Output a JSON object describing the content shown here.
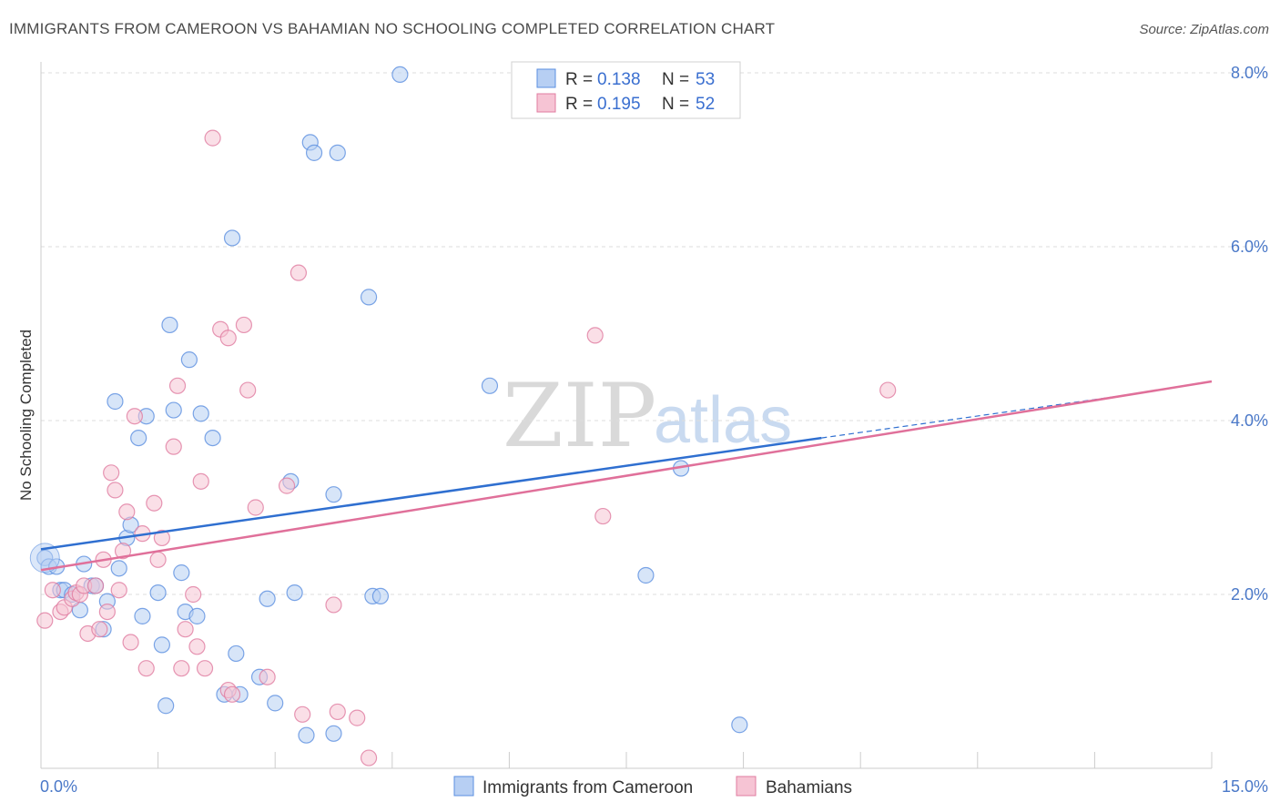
{
  "title": "IMMIGRANTS FROM CAMEROON VS BAHAMIAN NO SCHOOLING COMPLETED CORRELATION CHART",
  "source": "Source: ZipAtlas.com",
  "watermark": {
    "zip": "ZIP",
    "atlas": "atlas"
  },
  "colors": {
    "blue": "#5b8fe0",
    "blue_fill": "#b7cff3",
    "pink": "#e07ca0",
    "pink_fill": "#f6c4d4",
    "blue_line": "#2f6fd0",
    "pink_line": "#e0709a"
  },
  "legend": {
    "rows": [
      {
        "r_label": "R = ",
        "r_value": "0.138",
        "n_label": "N = ",
        "n_value": "53"
      },
      {
        "r_label": "R = ",
        "r_value": "0.195",
        "n_label": "N = ",
        "n_value": "52"
      }
    ]
  },
  "chart_data": {
    "type": "scatter",
    "ylabel": "No Schooling Completed",
    "xlim": [
      0,
      15
    ],
    "ylim": [
      0,
      8
    ],
    "x_tick_labels": [
      "0.0%",
      "15.0%"
    ],
    "y_ticks": [
      2,
      4,
      6,
      8
    ],
    "y_tick_labels": [
      "2.0%",
      "4.0%",
      "6.0%",
      "8.0%"
    ],
    "series": [
      {
        "name": "Immigrants from Cameroon",
        "r": 0.138,
        "n": 53,
        "trend": {
          "x0": 0.0,
          "y0": 2.52,
          "x1": 10.0,
          "y1": 3.8,
          "dash_to_x": 13.8,
          "dash_to_y": 4.28
        },
        "points": [
          [
            0.05,
            2.42
          ],
          [
            0.1,
            2.32
          ],
          [
            0.2,
            2.32
          ],
          [
            0.25,
            2.05
          ],
          [
            0.3,
            2.05
          ],
          [
            0.4,
            2.0
          ],
          [
            0.5,
            1.82
          ],
          [
            0.55,
            2.35
          ],
          [
            0.65,
            2.1
          ],
          [
            0.7,
            2.1
          ],
          [
            0.8,
            1.6
          ],
          [
            0.85,
            1.92
          ],
          [
            0.95,
            4.22
          ],
          [
            1.0,
            2.3
          ],
          [
            1.1,
            2.65
          ],
          [
            1.15,
            2.8
          ],
          [
            1.25,
            3.8
          ],
          [
            1.3,
            1.75
          ],
          [
            1.35,
            4.05
          ],
          [
            1.5,
            2.02
          ],
          [
            1.55,
            1.42
          ],
          [
            1.6,
            0.72
          ],
          [
            1.65,
            5.1
          ],
          [
            1.7,
            4.12
          ],
          [
            1.8,
            2.25
          ],
          [
            1.85,
            1.8
          ],
          [
            1.9,
            4.7
          ],
          [
            2.0,
            1.75
          ],
          [
            2.05,
            4.08
          ],
          [
            2.2,
            3.8
          ],
          [
            2.35,
            0.85
          ],
          [
            2.45,
            6.1
          ],
          [
            2.5,
            1.32
          ],
          [
            2.55,
            0.85
          ],
          [
            2.8,
            1.05
          ],
          [
            2.9,
            1.95
          ],
          [
            3.0,
            0.75
          ],
          [
            3.2,
            3.3
          ],
          [
            3.25,
            2.02
          ],
          [
            3.4,
            0.38
          ],
          [
            3.45,
            7.2
          ],
          [
            3.5,
            7.08
          ],
          [
            3.75,
            3.15
          ],
          [
            3.75,
            0.4
          ],
          [
            3.8,
            7.08
          ],
          [
            4.2,
            5.42
          ],
          [
            4.25,
            1.98
          ],
          [
            4.35,
            1.98
          ],
          [
            4.6,
            7.98
          ],
          [
            5.75,
            4.4
          ],
          [
            7.75,
            2.22
          ],
          [
            8.2,
            3.45
          ],
          [
            8.95,
            0.5
          ]
        ]
      },
      {
        "name": "Bahamians",
        "r": 0.195,
        "n": 52,
        "trend": {
          "x0": 0.0,
          "y0": 2.28,
          "x1": 15.0,
          "y1": 4.45
        },
        "points": [
          [
            0.05,
            1.7
          ],
          [
            0.15,
            2.05
          ],
          [
            0.25,
            1.8
          ],
          [
            0.3,
            1.85
          ],
          [
            0.4,
            1.95
          ],
          [
            0.45,
            2.02
          ],
          [
            0.5,
            2.0
          ],
          [
            0.55,
            2.1
          ],
          [
            0.6,
            1.55
          ],
          [
            0.7,
            2.1
          ],
          [
            0.75,
            1.6
          ],
          [
            0.8,
            2.4
          ],
          [
            0.85,
            1.8
          ],
          [
            0.9,
            3.4
          ],
          [
            0.95,
            3.2
          ],
          [
            1.0,
            2.05
          ],
          [
            1.05,
            2.5
          ],
          [
            1.1,
            2.95
          ],
          [
            1.15,
            1.45
          ],
          [
            1.2,
            4.05
          ],
          [
            1.3,
            2.7
          ],
          [
            1.35,
            1.15
          ],
          [
            1.45,
            3.05
          ],
          [
            1.5,
            2.4
          ],
          [
            1.55,
            2.65
          ],
          [
            1.7,
            3.7
          ],
          [
            1.75,
            4.4
          ],
          [
            1.8,
            1.15
          ],
          [
            1.85,
            1.6
          ],
          [
            1.95,
            2.0
          ],
          [
            2.0,
            1.4
          ],
          [
            2.05,
            3.3
          ],
          [
            2.1,
            1.15
          ],
          [
            2.2,
            7.25
          ],
          [
            2.3,
            5.05
          ],
          [
            2.4,
            4.95
          ],
          [
            2.4,
            0.9
          ],
          [
            2.45,
            0.85
          ],
          [
            2.6,
            5.1
          ],
          [
            2.65,
            4.35
          ],
          [
            2.75,
            3.0
          ],
          [
            2.9,
            1.05
          ],
          [
            3.15,
            3.25
          ],
          [
            3.3,
            5.7
          ],
          [
            3.35,
            0.62
          ],
          [
            3.75,
            1.88
          ],
          [
            3.8,
            0.65
          ],
          [
            4.05,
            0.58
          ],
          [
            4.2,
            0.12
          ],
          [
            7.1,
            4.98
          ],
          [
            7.2,
            2.9
          ],
          [
            10.85,
            4.35
          ]
        ]
      }
    ]
  }
}
